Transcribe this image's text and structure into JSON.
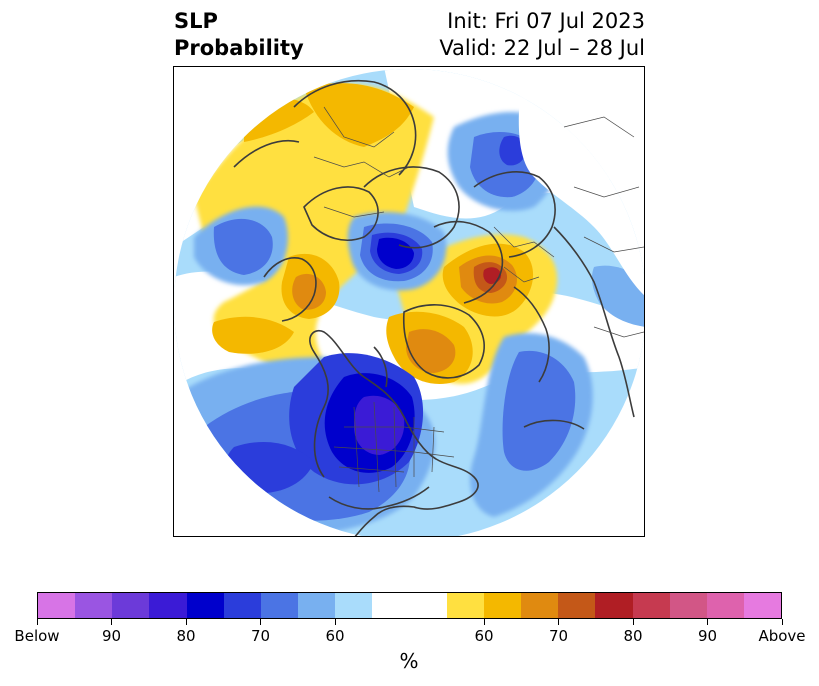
{
  "header": {
    "title_line1": "SLP",
    "title_line2": "Probability",
    "init": "Init: Fri 07 Jul 2023",
    "valid": "Valid: 22 Jul – 28 Jul"
  },
  "colorbar": {
    "colors": [
      "#d774e6",
      "#9a55e2",
      "#6c3ad9",
      "#3b1bd6",
      "#0000cc",
      "#2b3ddb",
      "#4b74e4",
      "#78b0f0",
      "#a9dcfb",
      "#ffffff",
      "#ffffff",
      "#ffe040",
      "#f4b800",
      "#e08a10",
      "#c45818",
      "#b01e24",
      "#c63a50",
      "#d25686",
      "#de62ad",
      "#e67ae0"
    ],
    "tick_labels": [
      "Below",
      "90",
      "80",
      "70",
      "60",
      "60",
      "70",
      "80",
      "90",
      "Above"
    ],
    "unit": "%"
  },
  "palette": {
    "b1": "#a9dcfb",
    "b2": "#78b0f0",
    "b3": "#4b74e4",
    "b4": "#2b3ddb",
    "b5": "#0000cc",
    "b6": "#3b1bd6",
    "b7": "#6c3ad9",
    "y1": "#ffe040",
    "y2": "#f4b800",
    "y3": "#e08a10",
    "y4": "#c45818",
    "y5": "#b01e24"
  }
}
